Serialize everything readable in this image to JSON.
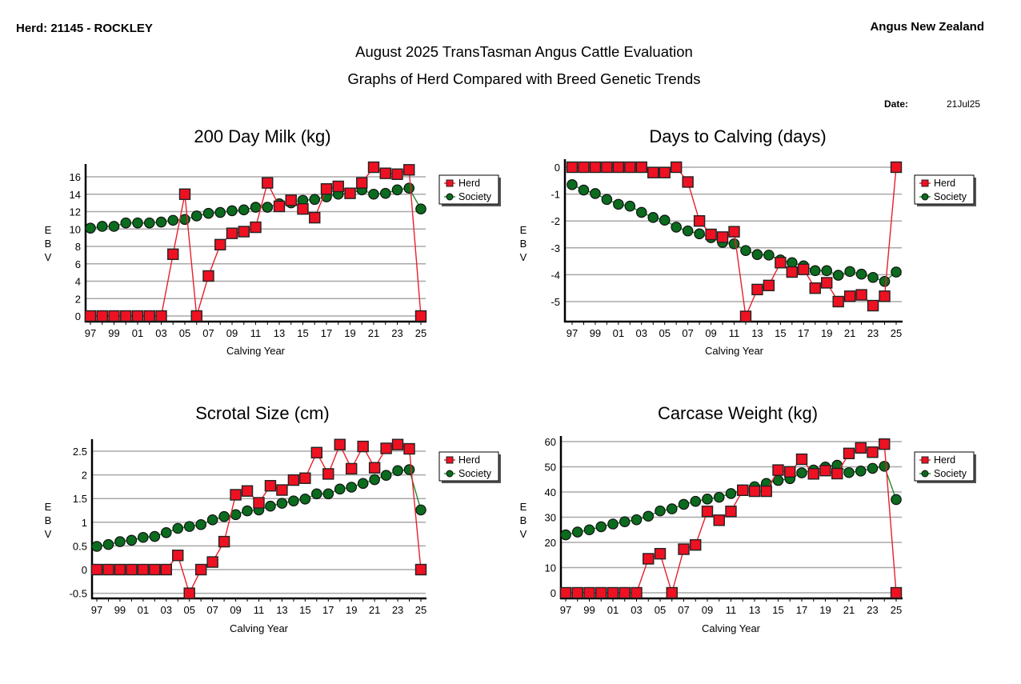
{
  "header": {
    "herd": "Herd: 21145 - ROCKLEY",
    "organisation": "Angus New Zealand",
    "title": "August 2025 TransTasman Angus Cattle Evaluation",
    "subtitle": "Graphs of Herd Compared with Breed Genetic Trends",
    "date_label": "Date:",
    "date_value": "21Jul25"
  },
  "colors": {
    "herd": "#ee1122",
    "herd_line": "#e8202c",
    "society": "#0b6b1e",
    "society_line": "#1e8a2c",
    "grid": "#a8a8a8"
  },
  "chart_data": [
    {
      "id": "milk",
      "type": "line",
      "title": "200 Day Milk (kg)",
      "xlabel": "Calving Year",
      "ylabel": "EBV",
      "x": [
        "97",
        "98",
        "99",
        "00",
        "01",
        "02",
        "03",
        "04",
        "05",
        "06",
        "07",
        "08",
        "09",
        "10",
        "11",
        "12",
        "13",
        "14",
        "15",
        "16",
        "17",
        "18",
        "19",
        "20",
        "21",
        "22",
        "23",
        "24",
        "25"
      ],
      "x_tick_labels": [
        "97",
        "99",
        "01",
        "03",
        "05",
        "07",
        "09",
        "11",
        "13",
        "15",
        "17",
        "19",
        "21",
        "23",
        "25"
      ],
      "yticks": [
        0,
        2,
        4,
        6,
        8,
        10,
        12,
        14,
        16
      ],
      "ylim": [
        -0.7,
        17.5
      ],
      "grid": true,
      "legend": [
        "Herd",
        "Society"
      ],
      "legend_position": "right",
      "series": [
        {
          "name": "Herd",
          "values": [
            0,
            0,
            0,
            0,
            0,
            0,
            0,
            7.1,
            14.0,
            0,
            4.6,
            8.2,
            9.5,
            9.7,
            10.2,
            15.3,
            12.6,
            13.3,
            12.3,
            11.3,
            14.6,
            14.9,
            14.1,
            15.3,
            17.1,
            16.4,
            16.3,
            16.8,
            0
          ]
        },
        {
          "name": "Society",
          "values": [
            10.1,
            10.3,
            10.3,
            10.7,
            10.7,
            10.7,
            10.8,
            11.0,
            11.1,
            11.5,
            11.8,
            11.9,
            12.1,
            12.2,
            12.5,
            12.5,
            12.9,
            13.0,
            13.3,
            13.4,
            13.7,
            14.0,
            14.1,
            14.5,
            14.0,
            14.1,
            14.5,
            14.7,
            12.3
          ]
        }
      ]
    },
    {
      "id": "calving",
      "type": "line",
      "title": "Days to Calving (days)",
      "xlabel": "Calving Year",
      "ylabel": "EBV",
      "x": [
        "97",
        "98",
        "99",
        "00",
        "01",
        "02",
        "03",
        "04",
        "05",
        "06",
        "07",
        "08",
        "09",
        "10",
        "11",
        "12",
        "13",
        "14",
        "15",
        "16",
        "17",
        "18",
        "19",
        "20",
        "21",
        "22",
        "23",
        "24",
        "25"
      ],
      "x_tick_labels": [
        "97",
        "99",
        "01",
        "03",
        "05",
        "07",
        "09",
        "11",
        "13",
        "15",
        "17",
        "19",
        "21",
        "23",
        "25"
      ],
      "yticks": [
        0,
        -1,
        -2,
        -3,
        -4,
        -5
      ],
      "ylim": [
        -5.75,
        0.15
      ],
      "grid": true,
      "legend": [
        "Herd",
        "Society"
      ],
      "legend_position": "right",
      "series": [
        {
          "name": "Herd",
          "values": [
            0,
            0,
            0,
            0,
            0,
            0,
            0,
            -0.2,
            -0.2,
            0,
            -0.55,
            -2.0,
            -2.5,
            -2.6,
            -2.4,
            -5.55,
            -4.55,
            -4.4,
            -3.55,
            -3.9,
            -3.8,
            -4.5,
            -4.3,
            -5.0,
            -4.8,
            -4.75,
            -5.15,
            -4.8,
            0
          ]
        },
        {
          "name": "Society",
          "values": [
            -0.65,
            -0.85,
            -0.98,
            -1.2,
            -1.38,
            -1.45,
            -1.68,
            -1.87,
            -1.97,
            -2.23,
            -2.37,
            -2.48,
            -2.62,
            -2.8,
            -2.85,
            -3.1,
            -3.25,
            -3.27,
            -3.45,
            -3.55,
            -3.67,
            -3.85,
            -3.85,
            -4.02,
            -3.88,
            -3.98,
            -4.1,
            -4.25,
            -3.9
          ]
        }
      ]
    },
    {
      "id": "scrotal",
      "type": "line",
      "title": "Scrotal Size (cm)",
      "xlabel": "Calving Year",
      "ylabel": "EBV",
      "x": [
        "97",
        "98",
        "99",
        "00",
        "01",
        "02",
        "03",
        "04",
        "05",
        "06",
        "07",
        "08",
        "09",
        "10",
        "11",
        "12",
        "13",
        "14",
        "15",
        "16",
        "17",
        "18",
        "19",
        "20",
        "21",
        "22",
        "23",
        "24",
        "25"
      ],
      "x_tick_labels": [
        "97",
        "99",
        "01",
        "03",
        "05",
        "07",
        "09",
        "11",
        "13",
        "15",
        "17",
        "19",
        "21",
        "23",
        "25"
      ],
      "yticks": [
        -0.5,
        0,
        0.5,
        1,
        1.5,
        2,
        2.5
      ],
      "ytick_labels": [
        "-0.5",
        "0",
        "0.5",
        "1",
        "1.5",
        "2",
        "2.5"
      ],
      "ylim": [
        -0.62,
        2.8
      ],
      "grid": true,
      "legend": [
        "Herd",
        "Society"
      ],
      "legend_position": "right",
      "series": [
        {
          "name": "Herd",
          "values": [
            0,
            0,
            0,
            0,
            0,
            0,
            0,
            0.3,
            -0.5,
            0,
            0.16,
            0.59,
            1.58,
            1.66,
            1.41,
            1.77,
            1.68,
            1.89,
            1.93,
            2.47,
            2.02,
            2.64,
            2.13,
            2.6,
            2.15,
            2.56,
            2.64,
            2.55,
            0
          ]
        },
        {
          "name": "Society",
          "values": [
            0.49,
            0.53,
            0.59,
            0.62,
            0.68,
            0.7,
            0.78,
            0.87,
            0.91,
            0.95,
            1.05,
            1.12,
            1.16,
            1.24,
            1.26,
            1.34,
            1.4,
            1.45,
            1.49,
            1.6,
            1.6,
            1.7,
            1.74,
            1.82,
            1.9,
            1.99,
            2.09,
            2.11,
            1.26
          ]
        }
      ]
    },
    {
      "id": "carcase",
      "type": "line",
      "title": "Carcase Weight (kg)",
      "xlabel": "Calving Year",
      "ylabel": "EBV",
      "x": [
        "97",
        "98",
        "99",
        "00",
        "01",
        "02",
        "03",
        "04",
        "05",
        "06",
        "07",
        "08",
        "09",
        "10",
        "11",
        "12",
        "13",
        "14",
        "15",
        "16",
        "17",
        "18",
        "19",
        "20",
        "21",
        "22",
        "23",
        "24",
        "25"
      ],
      "x_tick_labels": [
        "97",
        "99",
        "01",
        "03",
        "05",
        "07",
        "09",
        "11",
        "13",
        "15",
        "17",
        "19",
        "21",
        "23",
        "25"
      ],
      "yticks": [
        0,
        10,
        20,
        30,
        40,
        50,
        60
      ],
      "ylim": [
        -2.2,
        61
      ],
      "grid": true,
      "legend": [
        "Herd",
        "Society"
      ],
      "legend_position": "right",
      "series": [
        {
          "name": "Herd",
          "values": [
            0,
            0,
            0,
            0,
            0,
            0,
            0,
            13.5,
            15.5,
            0,
            17.3,
            19.0,
            32.3,
            28.8,
            32.3,
            40.7,
            40.3,
            40.3,
            48.7,
            48.0,
            53.0,
            47.2,
            48.5,
            47.3,
            55.3,
            57.5,
            55.8,
            59.0,
            0
          ]
        },
        {
          "name": "Society",
          "values": [
            23.0,
            24.1,
            25.0,
            26.2,
            27.3,
            28.2,
            29.0,
            30.4,
            32.5,
            33.3,
            35.1,
            36.3,
            37.2,
            37.9,
            39.4,
            40.8,
            42.1,
            43.4,
            44.6,
            45.3,
            47.6,
            48.7,
            49.9,
            50.6,
            47.7,
            48.3,
            49.4,
            50.2,
            37.0
          ]
        }
      ]
    }
  ]
}
